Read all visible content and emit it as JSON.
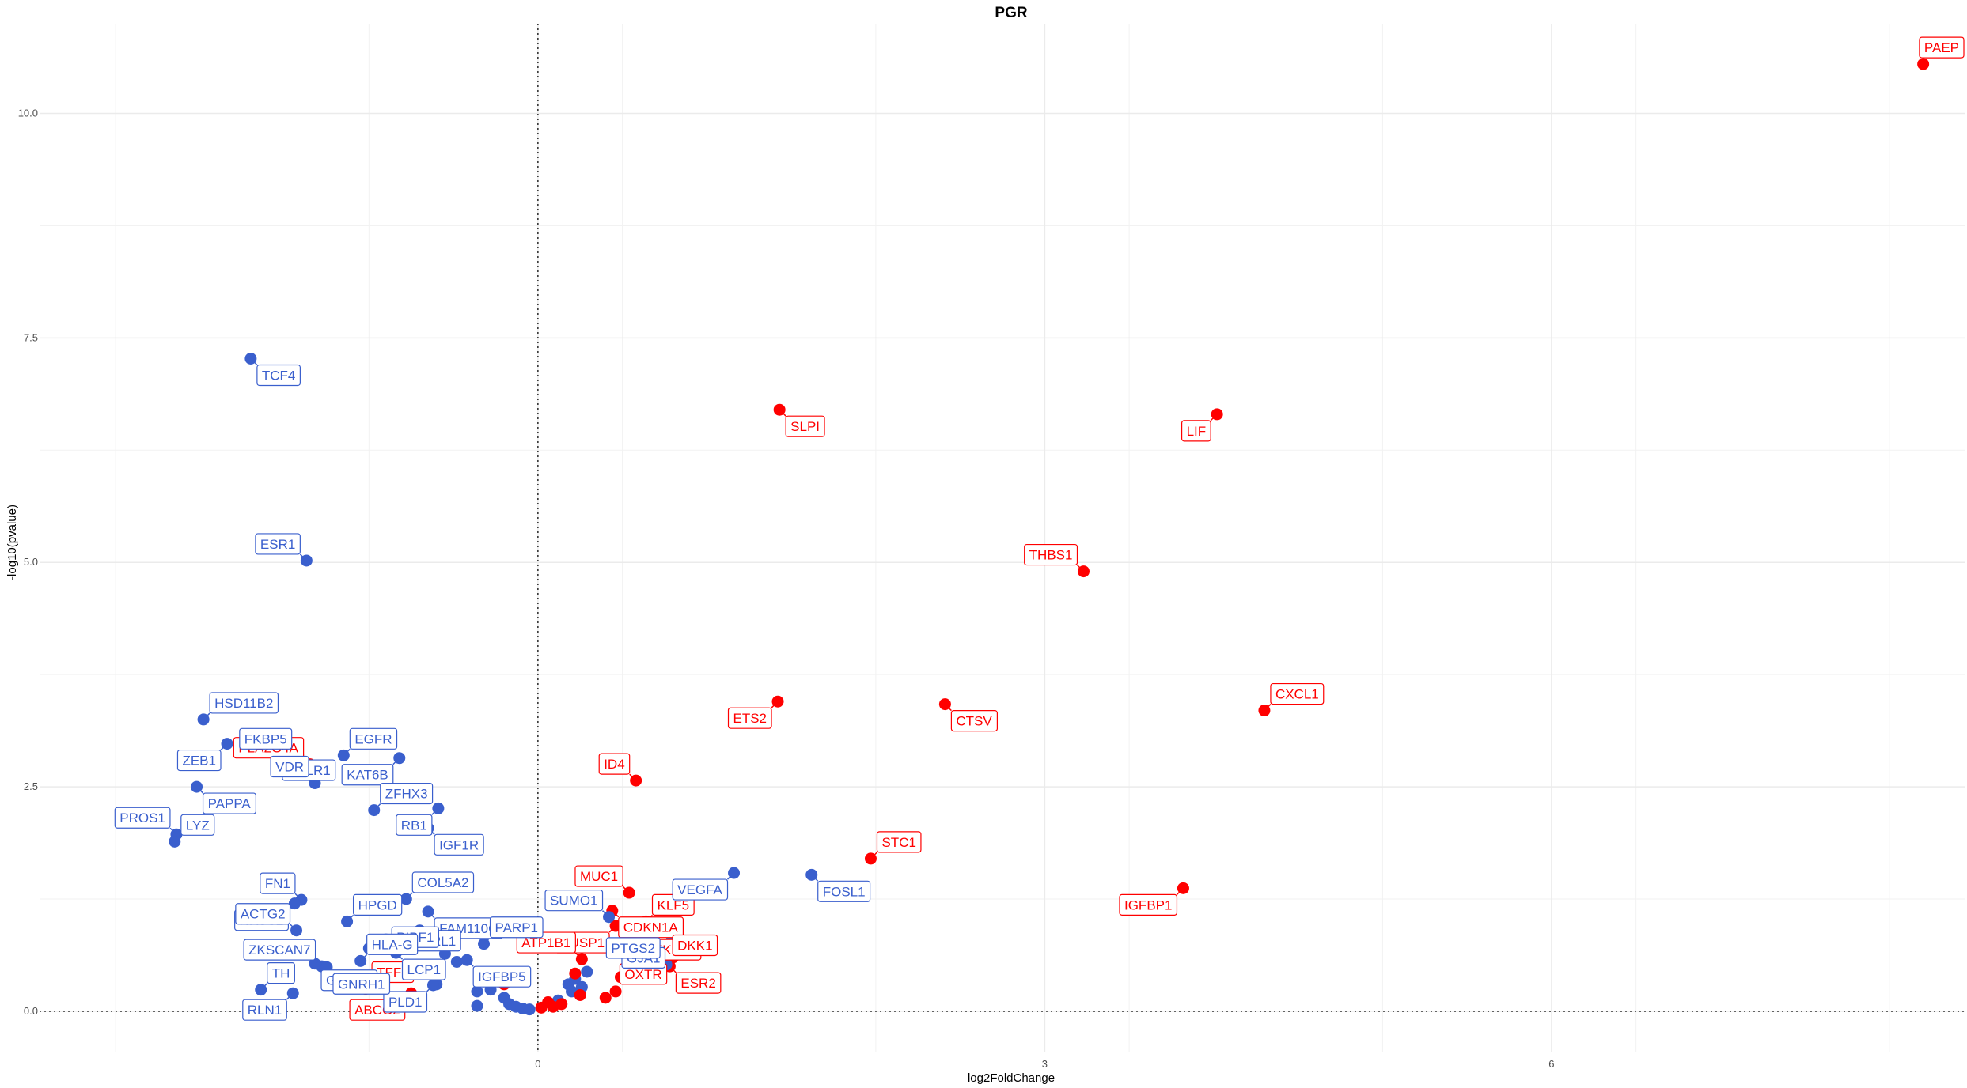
{
  "chart_data": {
    "type": "scatter",
    "title": "PGR",
    "xlabel": "log2FoldChange",
    "ylabel": "-log10(pvalue)",
    "xlim": [
      -2.95,
      8.45
    ],
    "ylim": [
      -0.45,
      11.0
    ],
    "xticks": [
      0,
      3,
      6
    ],
    "yticks": [
      0.0,
      2.5,
      5.0,
      7.5,
      10.0
    ],
    "ytick_labels": [
      "0.0",
      "2.5",
      "5.0",
      "7.5",
      "10.0"
    ],
    "xtick_labels": [
      "0",
      "3",
      "6"
    ],
    "reference_lines": {
      "x": 0,
      "y": 0,
      "style": "dotted"
    },
    "grid": true,
    "colors": {
      "up": "#ff0000",
      "down": "#3a5fcd"
    },
    "points": [
      {
        "name": "PAEP",
        "x": 8.2,
        "y": 10.55,
        "dir": "up"
      },
      {
        "name": "LIF",
        "x": 4.02,
        "y": 6.65,
        "dir": "up"
      },
      {
        "name": "SLPI",
        "x": 1.43,
        "y": 6.7,
        "dir": "up"
      },
      {
        "name": "THBS1",
        "x": 3.23,
        "y": 4.9,
        "dir": "up"
      },
      {
        "name": "CXCL1",
        "x": 4.3,
        "y": 3.35,
        "dir": "up"
      },
      {
        "name": "ETS2",
        "x": 1.42,
        "y": 3.45,
        "dir": "up"
      },
      {
        "name": "CTSV",
        "x": 2.41,
        "y": 3.42,
        "dir": "up"
      },
      {
        "name": "ID4",
        "x": 0.58,
        "y": 2.57,
        "dir": "up"
      },
      {
        "name": "STC1",
        "x": 1.97,
        "y": 1.7,
        "dir": "up"
      },
      {
        "name": "IGFBP1",
        "x": 3.82,
        "y": 1.37,
        "dir": "up"
      },
      {
        "name": "CDKN1A",
        "x": 0.44,
        "y": 1.12,
        "dir": "up"
      },
      {
        "name": "MUC1",
        "x": 0.54,
        "y": 1.32,
        "dir": "up"
      },
      {
        "name": "KLF5",
        "x": 0.64,
        "y": 1.0,
        "dir": "up"
      },
      {
        "name": "DUSP1",
        "x": 0.46,
        "y": 0.95,
        "dir": "up"
      },
      {
        "name": "PFKFB3",
        "x": 0.57,
        "y": 0.87,
        "dir": "up"
      },
      {
        "name": "ATP1B1",
        "x": 0.26,
        "y": 0.58,
        "dir": "up"
      },
      {
        "name": "DKK1",
        "x": 0.76,
        "y": 0.55,
        "dir": "up"
      },
      {
        "name": "OXTR",
        "x": 0.8,
        "y": 0.6,
        "dir": "up"
      },
      {
        "name": "ESR2",
        "x": 0.78,
        "y": 0.5,
        "dir": "up"
      },
      {
        "name": "PLA2G4A",
        "x": -1.35,
        "y": 2.75,
        "dir": "up"
      },
      {
        "name": "TFF1",
        "x": -1.02,
        "y": 0.25,
        "dir": "up"
      },
      {
        "name": "ABCG2",
        "x": -0.75,
        "y": 0.2,
        "dir": "up"
      },
      {
        "name": "TCF4",
        "x": -1.7,
        "y": 7.27,
        "dir": "down"
      },
      {
        "name": "ESR1",
        "x": -1.37,
        "y": 5.02,
        "dir": "down"
      },
      {
        "name": "HSD11B2",
        "x": -1.98,
        "y": 3.25,
        "dir": "down"
      },
      {
        "name": "ZEB1",
        "x": -1.84,
        "y": 2.98,
        "dir": "down"
      },
      {
        "name": "FOLR1",
        "x": -1.55,
        "y": 2.87,
        "dir": "down"
      },
      {
        "name": "FKBP5",
        "x": -1.42,
        "y": 2.85,
        "dir": "down"
      },
      {
        "name": "EGFR",
        "x": -1.15,
        "y": 2.85,
        "dir": "down"
      },
      {
        "name": "KAT6B",
        "x": -0.82,
        "y": 2.82,
        "dir": "down"
      },
      {
        "name": "PAPPA",
        "x": -2.02,
        "y": 2.5,
        "dir": "down"
      },
      {
        "name": "VDR",
        "x": -1.32,
        "y": 2.54,
        "dir": "down"
      },
      {
        "name": "ZFHX3",
        "x": -0.97,
        "y": 2.24,
        "dir": "down"
      },
      {
        "name": "RB1",
        "x": -0.59,
        "y": 2.26,
        "dir": "down"
      },
      {
        "name": "IGF1R",
        "x": -0.65,
        "y": 2.04,
        "dir": "down"
      },
      {
        "name": "PROS1",
        "x": -2.14,
        "y": 1.97,
        "dir": "down"
      },
      {
        "name": "LYZ",
        "x": -2.15,
        "y": 1.89,
        "dir": "down"
      },
      {
        "name": "VEGFA",
        "x": 1.16,
        "y": 1.54,
        "dir": "down"
      },
      {
        "name": "FOSL1",
        "x": 1.62,
        "y": 1.52,
        "dir": "down"
      },
      {
        "name": "FN1",
        "x": -1.4,
        "y": 1.24,
        "dir": "down"
      },
      {
        "name": "COL5A2",
        "x": -0.78,
        "y": 1.25,
        "dir": "down"
      },
      {
        "name": "NR3C2",
        "x": -1.44,
        "y": 1.2,
        "dir": "down"
      },
      {
        "name": "FAM110C",
        "x": -0.65,
        "y": 1.11,
        "dir": "down"
      },
      {
        "name": "SUMO1",
        "x": 0.42,
        "y": 1.05,
        "dir": "down"
      },
      {
        "name": "HPGD",
        "x": -1.13,
        "y": 1.0,
        "dir": "down"
      },
      {
        "name": "BCL2L1",
        "x": -0.42,
        "y": 0.97,
        "dir": "down"
      },
      {
        "name": "LCP1",
        "x": -0.84,
        "y": 0.65,
        "dir": "down"
      },
      {
        "name": "ACTG2",
        "x": -1.43,
        "y": 0.9,
        "dir": "down"
      },
      {
        "name": "PARP1",
        "x": -0.32,
        "y": 0.75,
        "dir": "down"
      },
      {
        "name": "GJA1",
        "x": 0.79,
        "y": 0.78,
        "dir": "down"
      },
      {
        "name": "GSTM2",
        "x": -1.32,
        "y": 0.53,
        "dir": "down"
      },
      {
        "name": "PIBF1",
        "x": -0.55,
        "y": 0.64,
        "dir": "down"
      },
      {
        "name": "HLA-G",
        "x": -1.05,
        "y": 0.56,
        "dir": "down"
      },
      {
        "name": "PLD1",
        "x": -0.62,
        "y": 0.29,
        "dir": "down"
      },
      {
        "name": "IGFBP5",
        "x": -0.42,
        "y": 0.57,
        "dir": "down"
      },
      {
        "name": "ZKSCAN7",
        "x": -1.28,
        "y": 0.5,
        "dir": "down"
      },
      {
        "name": "TH",
        "x": -1.64,
        "y": 0.24,
        "dir": "down"
      },
      {
        "name": "RLN1",
        "x": -1.45,
        "y": 0.2,
        "dir": "down"
      },
      {
        "name": "GNRH1",
        "x": -1.25,
        "y": 0.49,
        "dir": "down"
      },
      {
        "name": "PTGS2",
        "x": 0.76,
        "y": 0.52,
        "dir": "down"
      }
    ],
    "unlabeled_points": [
      {
        "x": -0.9,
        "y": 0.8,
        "dir": "down"
      },
      {
        "x": -1.0,
        "y": 0.7,
        "dir": "down"
      },
      {
        "x": -0.7,
        "y": 0.9,
        "dir": "down"
      },
      {
        "x": -0.48,
        "y": 0.55,
        "dir": "down"
      },
      {
        "x": -0.36,
        "y": 0.22,
        "dir": "down"
      },
      {
        "x": -0.28,
        "y": 0.24,
        "dir": "down"
      },
      {
        "x": -0.2,
        "y": 0.15,
        "dir": "down"
      },
      {
        "x": -0.17,
        "y": 0.08,
        "dir": "down"
      },
      {
        "x": -0.13,
        "y": 0.05,
        "dir": "down"
      },
      {
        "x": -0.09,
        "y": 0.03,
        "dir": "down"
      },
      {
        "x": -0.05,
        "y": 0.02,
        "dir": "down"
      },
      {
        "x": 0.12,
        "y": 0.12,
        "dir": "down"
      },
      {
        "x": 0.18,
        "y": 0.3,
        "dir": "down"
      },
      {
        "x": 0.22,
        "y": 0.36,
        "dir": "down"
      },
      {
        "x": 0.26,
        "y": 0.27,
        "dir": "down"
      },
      {
        "x": 0.29,
        "y": 0.44,
        "dir": "down"
      },
      {
        "x": 0.2,
        "y": 0.22,
        "dir": "down"
      },
      {
        "x": -0.36,
        "y": 0.06,
        "dir": "down"
      },
      {
        "x": -0.6,
        "y": 0.3,
        "dir": "down"
      },
      {
        "x": 0.06,
        "y": 0.1,
        "dir": "up"
      },
      {
        "x": 0.02,
        "y": 0.04,
        "dir": "up"
      },
      {
        "x": 0.09,
        "y": 0.05,
        "dir": "up"
      },
      {
        "x": 0.14,
        "y": 0.08,
        "dir": "up"
      },
      {
        "x": 0.22,
        "y": 0.42,
        "dir": "up"
      },
      {
        "x": 0.4,
        "y": 0.15,
        "dir": "up"
      },
      {
        "x": 0.46,
        "y": 0.22,
        "dir": "up"
      },
      {
        "x": 0.49,
        "y": 0.38,
        "dir": "up"
      },
      {
        "x": 0.6,
        "y": 0.9,
        "dir": "up"
      },
      {
        "x": -0.2,
        "y": 0.3,
        "dir": "up"
      },
      {
        "x": 0.25,
        "y": 0.18,
        "dir": "up"
      }
    ]
  }
}
